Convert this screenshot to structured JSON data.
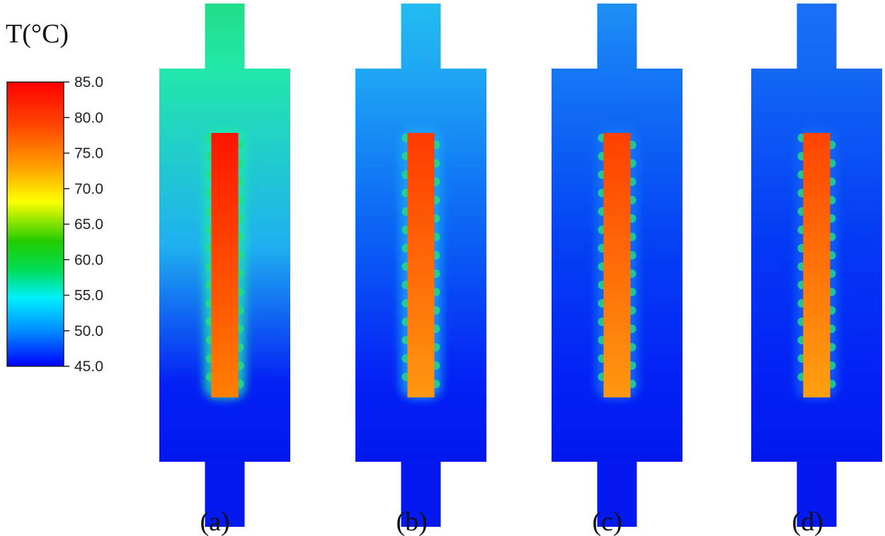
{
  "legend": {
    "title": "T(°C)",
    "ticks": [
      "85.0",
      "80.0",
      "75.0",
      "70.0",
      "65.0",
      "60.0",
      "55.0",
      "50.0",
      "45.0"
    ],
    "range": [
      45.0,
      85.0
    ],
    "colors": [
      "#0000ff",
      "#0088ff",
      "#00f0ff",
      "#00dd55",
      "#22cc00",
      "#ffff00",
      "#ffa000",
      "#ff4400",
      "#ff0000"
    ]
  },
  "panels": [
    {
      "label": "(a)",
      "channel_color": "#22dd88",
      "fluid_top_color": "#22e8aa",
      "fluid_mid_color": "#1fb0f0",
      "heater_top_color": "#ff1400",
      "heater_bottom_color": "#ff8000"
    },
    {
      "label": "(b)",
      "channel_color": "#22bbf0",
      "fluid_top_color": "#1fa8f5",
      "fluid_mid_color": "#0a5cf5",
      "heater_top_color": "#ff3a00",
      "heater_bottom_color": "#ff9810"
    },
    {
      "label": "(c)",
      "channel_color": "#1f8ff5",
      "fluid_top_color": "#1478f5",
      "fluid_mid_color": "#0440f5",
      "heater_top_color": "#ff4000",
      "heater_bottom_color": "#ff9810"
    },
    {
      "label": "(d)",
      "channel_color": "#1a70f5",
      "fluid_top_color": "#1268f5",
      "fluid_mid_color": "#0438f5",
      "heater_top_color": "#ff4400",
      "heater_bottom_color": "#ffa010"
    }
  ]
}
